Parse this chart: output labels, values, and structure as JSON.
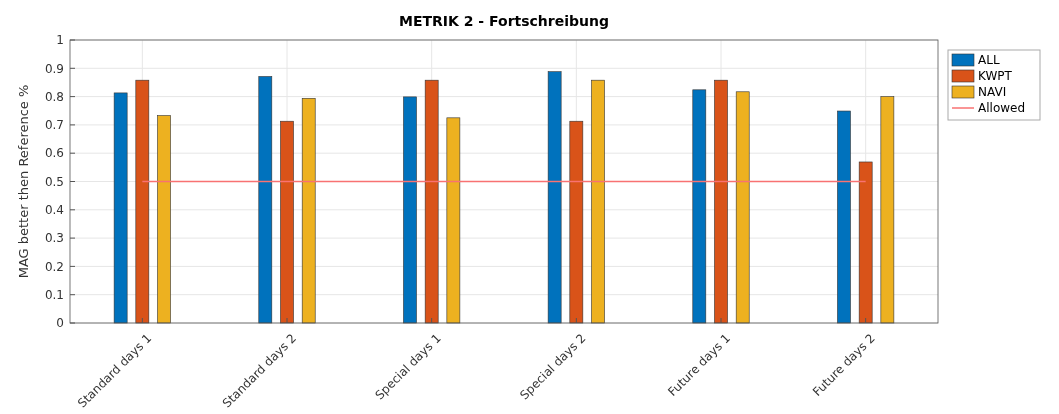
{
  "chart_data": {
    "type": "bar",
    "title": "METRIK 2  - Fortschreibung",
    "ylabel": "MAG better then Reference %",
    "categories": [
      "Standard days 1",
      "Standard days 2",
      "Special days 1",
      "Special days 2",
      "Future days 1",
      "Future days 2"
    ],
    "series": [
      {
        "name": "ALL",
        "color": "#0072bd",
        "values": [
          0.813,
          0.871,
          0.799,
          0.888,
          0.824,
          0.749
        ]
      },
      {
        "name": "KWPT",
        "color": "#d95319",
        "values": [
          0.858,
          0.713,
          0.858,
          0.713,
          0.858,
          0.569
        ]
      },
      {
        "name": "NAVI",
        "color": "#edb120",
        "values": [
          0.733,
          0.794,
          0.725,
          0.858,
          0.817,
          0.8
        ]
      },
      {
        "name": "Allowed",
        "type": "line",
        "color": "#f87272",
        "values": [
          0.5,
          0.5,
          0.5,
          0.5,
          0.5,
          0.5
        ]
      }
    ],
    "ylim": [
      0,
      1
    ],
    "yticks": [
      0,
      0.1,
      0.2,
      0.3,
      0.4,
      0.5,
      0.6,
      0.7,
      0.8,
      0.9,
      1
    ],
    "grid": true,
    "legend": "right"
  }
}
